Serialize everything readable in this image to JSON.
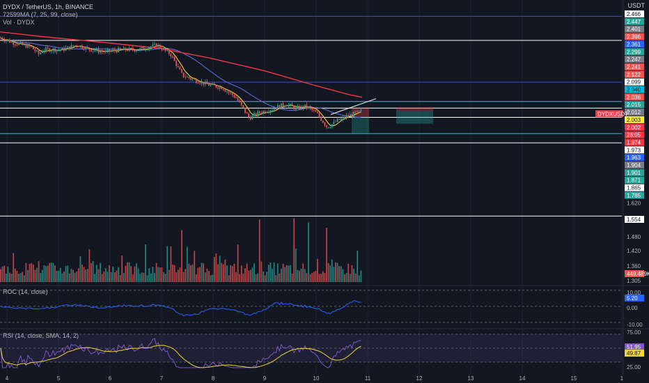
{
  "header": {
    "symbol_line": "DYDX / TetherUS, 1h, BINANCE",
    "ma_line": "72599MA (7, 25, 99, close)",
    "vol_line": "Vol · DYDX"
  },
  "price_axis_title": "USDT",
  "chart_data": {
    "type": "candlestick",
    "x_ticks": [
      "4",
      "5",
      "6",
      "7",
      "8",
      "9",
      "10",
      "11",
      "12",
      "13",
      "14",
      "15",
      "1"
    ],
    "price_panel": {
      "ylim": [
        1.585,
        2.47
      ],
      "price_levels": [
        {
          "label": "2.466",
          "color": "#ffffff",
          "text": "#131722"
        },
        {
          "label": "2.447",
          "color": "#26a69a",
          "text": "#ffffff"
        },
        {
          "label": "2.401",
          "color": "#787b86",
          "text": "#ffffff"
        },
        {
          "label": "2.396",
          "color": "#ef5350",
          "text": "#ffffff"
        },
        {
          "label": "2.361",
          "color": "#2962ff",
          "text": "#ffffff"
        },
        {
          "label": "2.299",
          "color": "#26a69a",
          "text": "#ffffff"
        },
        {
          "label": "2.247",
          "color": "#787b86",
          "text": "#ffffff"
        },
        {
          "label": "2.241",
          "color": "#ef5350",
          "text": "#ffffff"
        },
        {
          "label": "2.122",
          "color": "#ef5350",
          "text": "#ffffff"
        },
        {
          "label": "2.099",
          "color": "#ffffff",
          "text": "#131722"
        },
        {
          "label": "2.040",
          "color": "#00bcd4",
          "text": "#131722"
        },
        {
          "label": "2.036",
          "color": "#ef5350",
          "text": "#ffffff"
        },
        {
          "label": "2.015",
          "color": "#26a69a",
          "text": "#ffffff"
        },
        {
          "label": "2.012",
          "color": "#787b86",
          "text": "#ffffff"
        },
        {
          "label": "2.003",
          "color": "#ffeb3b",
          "text": "#131722"
        },
        {
          "label": "2.002",
          "color": "#f23645",
          "text": "#ffffff"
        },
        {
          "label": "28:05",
          "color": "#f23645",
          "text": "#ffffff"
        },
        {
          "label": "1.974",
          "color": "#f23645",
          "text": "#ffffff"
        },
        {
          "label": "1.973",
          "color": "#ffffff",
          "text": "#131722"
        },
        {
          "label": "1.963",
          "color": "#2962ff",
          "text": "#ffffff"
        },
        {
          "label": "1.904",
          "color": "#787b86",
          "text": "#ffffff"
        },
        {
          "label": "1.901",
          "color": "#26a69a",
          "text": "#ffffff"
        },
        {
          "label": "1.871",
          "color": "#26a69a",
          "text": "#ffffff"
        },
        {
          "label": "1.865",
          "color": "#ffffff",
          "text": "#131722"
        },
        {
          "label": "1.785",
          "color": "#26a69a",
          "text": "#ffffff"
        },
        {
          "label": "1.620",
          "color": "",
          "text": "#b2b5be"
        }
      ],
      "symbol_tag": "DYDXUSDT",
      "horizontal_lines": [
        2.401,
        2.299,
        2.122,
        2.04,
        2.012,
        1.973,
        1.904,
        1.865
      ],
      "ma_99_color": "#f23645",
      "ma_25_color": "#5b6bd6",
      "ma_7_color": "#f0d43a"
    },
    "volume_panel": {
      "ylim": [
        1.305,
        1.56
      ],
      "price_levels": [
        {
          "label": "1.554",
          "color": "#ffffff",
          "text": "#131722"
        },
        {
          "label": "1.480",
          "color": "",
          "text": "#b2b5be"
        },
        {
          "label": "1.420",
          "color": "",
          "text": "#b2b5be"
        },
        {
          "label": "1.360",
          "color": "",
          "text": "#b2b5be"
        },
        {
          "label": "1.305",
          "color": "",
          "text": "#b2b5be"
        }
      ],
      "volume_tag": "449.489K",
      "horizontal_line": 1.554
    },
    "roc_panel": {
      "title": "ROC (14, close)",
      "ylim": [
        -14,
        13
      ],
      "ticks": [
        "10.00",
        "0.00",
        "-10.00"
      ],
      "last_value": "5.20",
      "line_color": "#2962ff"
    },
    "rsi_panel": {
      "title": "RSI (14, close, SMA, 14, 2)",
      "ylim": [
        20,
        78
      ],
      "ticks": [
        "75.00",
        "25.00"
      ],
      "last_value": "51.95",
      "sma_value": "49.87",
      "line_color": "#7e57c2",
      "sma_color": "#f0d43a"
    }
  }
}
